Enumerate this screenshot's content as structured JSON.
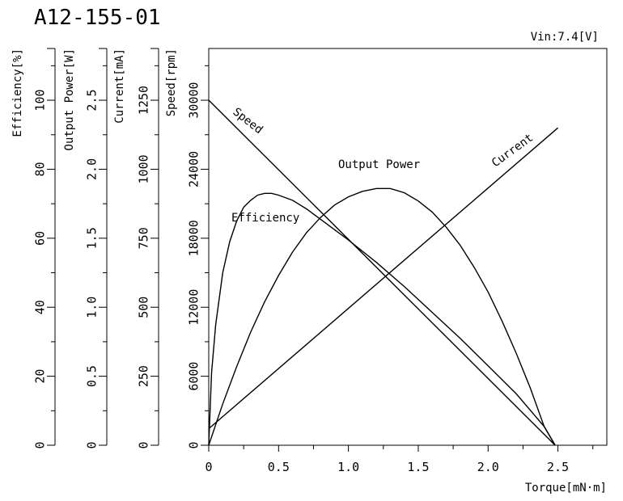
{
  "chart_data": {
    "type": "line",
    "title": "A12-155-01",
    "subtitle": "Vin:7.4[V]",
    "xlabel": "Torque[mN·m]",
    "x_ticks": [
      "0",
      "0.5",
      "1.0",
      "1.5",
      "2.0",
      "2.5"
    ],
    "xlim": [
      0,
      2.85
    ],
    "grid": false,
    "axes": [
      {
        "id": "efficiency",
        "label": "Efficiency[%]",
        "range": [
          0,
          115
        ],
        "ticks": [
          "0",
          "20",
          "40",
          "60",
          "80",
          "100"
        ],
        "tick_values": [
          0,
          20,
          40,
          60,
          80,
          100
        ]
      },
      {
        "id": "power",
        "label": "Output Power[W]",
        "range": [
          0,
          2.875
        ],
        "ticks": [
          "0",
          "0.5",
          "1.0",
          "1.5",
          "2.0",
          "2.5"
        ],
        "tick_values": [
          0,
          0.5,
          1.0,
          1.5,
          2.0,
          2.5
        ]
      },
      {
        "id": "current",
        "label": "Current[mA]",
        "range": [
          0,
          1437.5
        ],
        "ticks": [
          "0",
          "250",
          "500",
          "750",
          "1000",
          "1250"
        ],
        "tick_values": [
          0,
          250,
          500,
          750,
          1000,
          1250
        ]
      },
      {
        "id": "speed",
        "label": "Speed[rpm]",
        "range": [
          0,
          34500
        ],
        "ticks": [
          "0",
          "6000",
          "12000",
          "18000",
          "24000",
          "30000"
        ],
        "tick_values": [
          0,
          6000,
          12000,
          18000,
          24000,
          30000
        ]
      }
    ],
    "series": [
      {
        "name": "Speed",
        "axis": "speed",
        "x": [
          0,
          2.48
        ],
        "y": [
          30000,
          0
        ]
      },
      {
        "name": "Current",
        "axis": "current",
        "x": [
          0,
          2.5
        ],
        "y": [
          60,
          1150
        ]
      },
      {
        "name": "Output Power",
        "axis": "power",
        "x": [
          0,
          0.1,
          0.2,
          0.3,
          0.4,
          0.5,
          0.6,
          0.7,
          0.8,
          0.9,
          1.0,
          1.1,
          1.2,
          1.24,
          1.3,
          1.4,
          1.5,
          1.6,
          1.7,
          1.8,
          1.9,
          2.0,
          2.1,
          2.2,
          2.3,
          2.4,
          2.48
        ],
        "y": [
          0,
          0.3,
          0.57,
          0.82,
          1.04,
          1.23,
          1.4,
          1.54,
          1.65,
          1.74,
          1.8,
          1.84,
          1.86,
          1.86,
          1.86,
          1.83,
          1.77,
          1.69,
          1.58,
          1.45,
          1.29,
          1.11,
          0.9,
          0.67,
          0.42,
          0.14,
          0
        ]
      },
      {
        "name": "Efficiency",
        "axis": "efficiency",
        "x": [
          0,
          0.02,
          0.05,
          0.1,
          0.15,
          0.2,
          0.25,
          0.3,
          0.35,
          0.4,
          0.45,
          0.5,
          0.6,
          0.7,
          0.8,
          0.9,
          1.0,
          1.2,
          1.4,
          1.6,
          1.8,
          2.0,
          2.2,
          2.4,
          2.48
        ],
        "y": [
          0,
          21,
          35,
          50,
          59,
          65,
          69,
          71,
          72.5,
          73,
          73,
          72.5,
          71,
          68.5,
          65.5,
          62.5,
          59.5,
          53,
          46,
          38.5,
          31,
          23,
          15,
          5.5,
          0
        ]
      }
    ]
  }
}
